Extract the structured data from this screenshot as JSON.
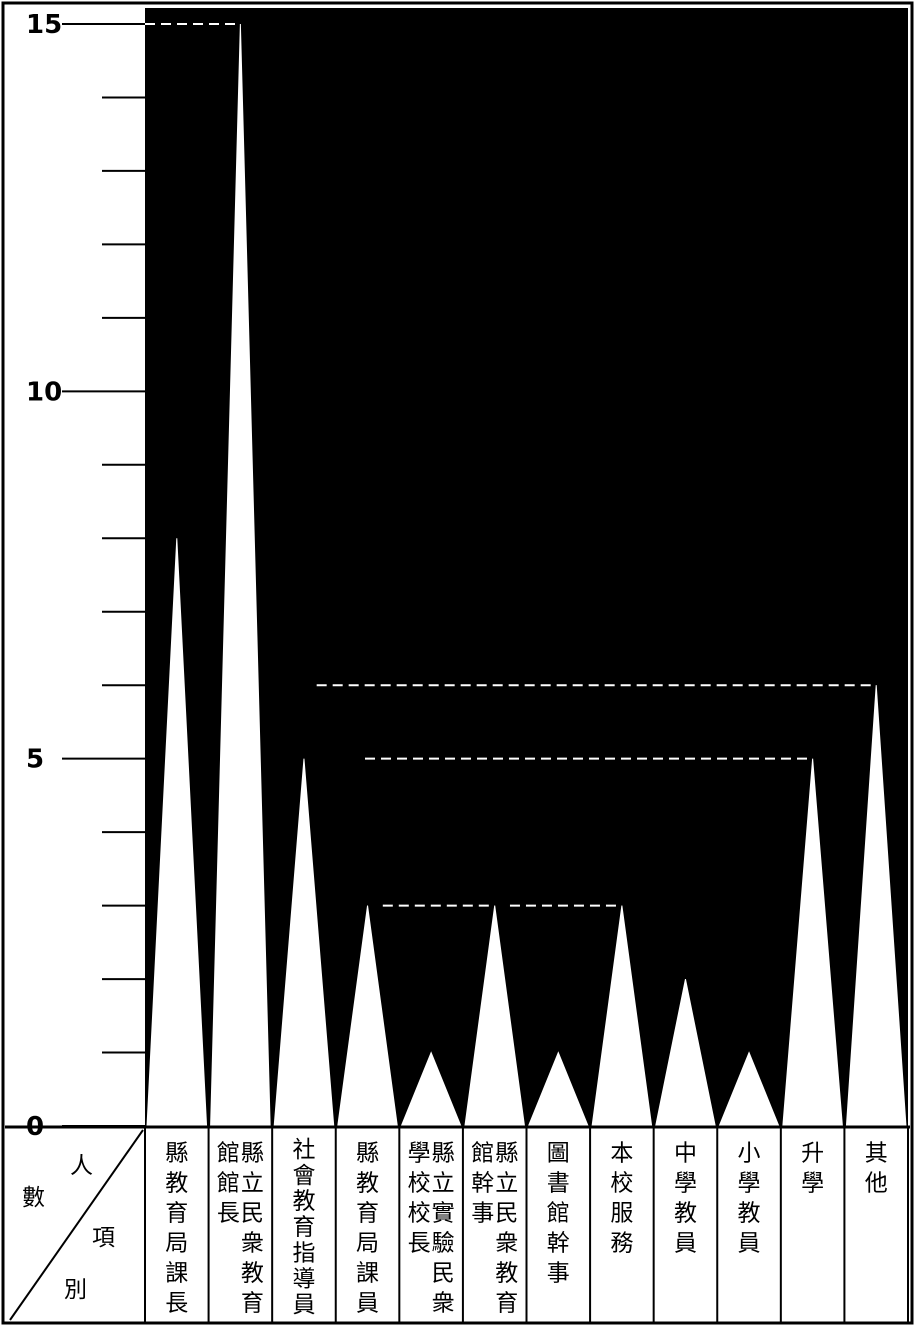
{
  "chart_data": {
    "type": "bar",
    "title": "",
    "xlabel": "項別",
    "ylabel": "人數",
    "ylim": [
      0,
      15
    ],
    "y_ticks": [
      "0",
      "5",
      "10",
      "15"
    ],
    "minor_tick_step": 1,
    "grid": false,
    "categories": [
      [
        "縣教育局課長"
      ],
      [
        "縣立民衆教育",
        "館館長"
      ],
      [
        "社會教育指導員"
      ],
      [
        "縣教育局課員"
      ],
      [
        "縣立實驗民衆",
        "學校校長"
      ],
      [
        "縣立民衆教育",
        "館幹事"
      ],
      [
        "圖書館幹事"
      ],
      [
        "本校服務"
      ],
      [
        "中學教員"
      ],
      [
        "小學教員"
      ],
      [
        "升學"
      ],
      [
        "其他"
      ]
    ],
    "values": [
      8,
      15,
      5,
      3,
      1,
      3,
      1,
      3,
      2,
      1,
      5,
      6
    ],
    "bar_color": "#ffffff",
    "background_color": "#000000"
  },
  "corner": {
    "top_char": "人",
    "left_char": "數",
    "right_char": "項",
    "bottom_char": "別"
  }
}
